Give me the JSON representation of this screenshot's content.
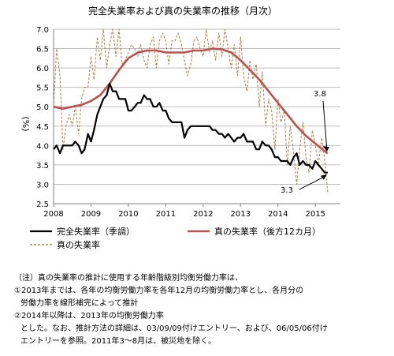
{
  "chart_data": {
    "type": "line",
    "title": "完全失業率および真の失業率の推移（月次）",
    "ylabel": "(%)",
    "xlabel": "",
    "ylim": [
      2.5,
      7.0
    ],
    "yticks": [
      "2.5",
      "3.0",
      "3.5",
      "4.0",
      "4.5",
      "5.0",
      "5.5",
      "6.0",
      "6.5",
      "7.0"
    ],
    "xlim": [
      2008.0,
      2015.67
    ],
    "xticks": [
      "2008",
      "2009",
      "2010",
      "2011",
      "2012",
      "2013",
      "2014",
      "2015"
    ],
    "grid": "horizontal",
    "legend_position": "bottom",
    "series": [
      {
        "name": "完全失業率（季調）",
        "color": "#000000",
        "style": "solid",
        "x": [
          2008.0,
          2008.08,
          2008.17,
          2008.25,
          2008.33,
          2008.42,
          2008.5,
          2008.58,
          2008.67,
          2008.75,
          2008.83,
          2008.92,
          2009.0,
          2009.08,
          2009.17,
          2009.25,
          2009.33,
          2009.42,
          2009.5,
          2009.58,
          2009.67,
          2009.75,
          2009.83,
          2009.92,
          2010.0,
          2010.08,
          2010.17,
          2010.25,
          2010.33,
          2010.42,
          2010.5,
          2010.58,
          2010.67,
          2010.75,
          2010.83,
          2010.92,
          2011.0,
          2011.08,
          2011.17,
          2011.25,
          2011.33,
          2011.42,
          2011.5,
          2011.58,
          2011.67,
          2011.75,
          2011.83,
          2011.92,
          2012.0,
          2012.08,
          2012.17,
          2012.25,
          2012.33,
          2012.42,
          2012.5,
          2012.58,
          2012.67,
          2012.75,
          2012.83,
          2012.92,
          2013.0,
          2013.08,
          2013.17,
          2013.25,
          2013.33,
          2013.42,
          2013.5,
          2013.58,
          2013.67,
          2013.75,
          2013.83,
          2013.92,
          2014.0,
          2014.08,
          2014.17,
          2014.25,
          2014.33,
          2014.42,
          2014.5,
          2014.58,
          2014.67,
          2014.75,
          2014.83,
          2014.92,
          2015.0,
          2015.08,
          2015.17,
          2015.25,
          2015.33
        ],
        "values": [
          3.9,
          4.0,
          3.8,
          4.0,
          4.0,
          4.0,
          4.0,
          4.1,
          4.0,
          3.8,
          3.9,
          4.3,
          4.1,
          4.4,
          4.8,
          5.0,
          5.2,
          5.3,
          5.6,
          5.4,
          5.4,
          5.2,
          5.2,
          5.2,
          4.9,
          4.9,
          5.0,
          5.1,
          5.1,
          5.3,
          5.2,
          5.2,
          5.0,
          5.0,
          5.1,
          4.9,
          4.9,
          4.7,
          4.6,
          4.6,
          4.6,
          4.6,
          4.2,
          4.4,
          4.5,
          4.5,
          4.5,
          4.5,
          4.5,
          4.5,
          4.5,
          4.4,
          4.4,
          4.3,
          4.3,
          4.2,
          4.3,
          4.2,
          4.1,
          4.2,
          4.2,
          4.3,
          4.1,
          4.1,
          4.1,
          3.9,
          3.9,
          4.1,
          4.0,
          4.0,
          3.9,
          3.7,
          3.7,
          3.6,
          3.6,
          3.6,
          3.5,
          3.7,
          3.8,
          3.5,
          3.6,
          3.5,
          3.5,
          3.4,
          3.6,
          3.5,
          3.4,
          3.3,
          3.3
        ]
      },
      {
        "name": "真の失業率（後方12カ月）",
        "color": "#c0504d",
        "style": "solid",
        "x": [
          2008.0,
          2008.25,
          2008.5,
          2008.75,
          2009.0,
          2009.25,
          2009.5,
          2009.75,
          2010.0,
          2010.25,
          2010.5,
          2010.75,
          2011.0,
          2011.25,
          2011.5,
          2011.75,
          2012.0,
          2012.25,
          2012.5,
          2012.75,
          2013.0,
          2013.25,
          2013.5,
          2013.75,
          2014.0,
          2014.25,
          2014.5,
          2014.75,
          2015.0,
          2015.25,
          2015.33
        ],
        "values": [
          5.0,
          4.95,
          5.0,
          5.05,
          5.15,
          5.3,
          5.6,
          5.95,
          6.25,
          6.4,
          6.45,
          6.45,
          6.4,
          6.4,
          6.4,
          6.45,
          6.45,
          6.5,
          6.48,
          6.4,
          6.2,
          5.95,
          5.7,
          5.4,
          5.1,
          4.8,
          4.5,
          4.25,
          4.05,
          3.85,
          3.8
        ]
      },
      {
        "name": "真の失業率",
        "color": "#b08850",
        "style": "dashed",
        "x": [
          2008.0,
          2008.08,
          2008.17,
          2008.25,
          2008.33,
          2008.42,
          2008.5,
          2008.58,
          2008.67,
          2008.75,
          2008.83,
          2008.92,
          2009.0,
          2009.08,
          2009.17,
          2009.25,
          2009.33,
          2009.42,
          2009.5,
          2009.58,
          2009.67,
          2009.75,
          2009.83,
          2009.92,
          2010.0,
          2010.08,
          2010.17,
          2010.25,
          2010.33,
          2010.42,
          2010.5,
          2010.58,
          2010.67,
          2010.75,
          2010.83,
          2010.92,
          2011.0,
          2011.08,
          2011.17,
          2011.25,
          2011.33,
          2011.42,
          2011.5,
          2011.58,
          2011.67,
          2011.75,
          2011.83,
          2011.92,
          2012.0,
          2012.08,
          2012.17,
          2012.25,
          2012.33,
          2012.42,
          2012.5,
          2012.58,
          2012.67,
          2012.75,
          2012.83,
          2012.92,
          2013.0,
          2013.08,
          2013.17,
          2013.25,
          2013.33,
          2013.42,
          2013.5,
          2013.58,
          2013.67,
          2013.75,
          2013.83,
          2013.92,
          2014.0,
          2014.08,
          2014.17,
          2014.25,
          2014.33,
          2014.42,
          2014.5,
          2014.58,
          2014.67,
          2014.75,
          2014.83,
          2014.92,
          2015.0,
          2015.08,
          2015.17,
          2015.25,
          2015.33
        ],
        "values": [
          5.0,
          6.5,
          5.8,
          3.9,
          4.5,
          4.8,
          4.5,
          5.0,
          4.3,
          5.2,
          5.5,
          5.5,
          6.3,
          5.7,
          6.8,
          6.2,
          7.0,
          6.0,
          6.6,
          7.0,
          6.3,
          7.0,
          6.1,
          6.2,
          6.4,
          6.6,
          6.5,
          6.3,
          6.6,
          6.2,
          6.0,
          6.6,
          6.8,
          6.0,
          6.7,
          6.9,
          6.7,
          6.1,
          6.7,
          6.7,
          6.9,
          6.6,
          6.2,
          5.8,
          6.1,
          6.7,
          6.8,
          6.5,
          6.3,
          7.0,
          6.4,
          6.7,
          6.2,
          6.9,
          6.3,
          7.0,
          6.5,
          6.0,
          6.6,
          5.8,
          6.8,
          5.8,
          5.4,
          6.2,
          5.7,
          6.1,
          5.0,
          5.9,
          4.5,
          5.2,
          4.9,
          3.9,
          5.2,
          4.6,
          4.9,
          3.5,
          4.5,
          3.8,
          3.0,
          3.9,
          4.6,
          3.7,
          3.3,
          4.4,
          4.0,
          3.5,
          4.2,
          3.6,
          2.8
        ]
      }
    ],
    "annotations": [
      {
        "text": "3.8",
        "x": 2015.33,
        "y": 3.8
      },
      {
        "text": "3.3",
        "x": 2015.33,
        "y": 3.3
      }
    ]
  },
  "notes": [
    "（注）真の失業率の推計に使用する年齢階級別均衡労働力率は、",
    "①2013年までは、各年の均衡労働力率を各年12月の均衡労働力率とし、各月分の",
    "労働力率を線形補完によって推計",
    "②2014年以降は、2013年の均衡労働力率",
    "とした。なお、推計方法の詳細は、03/09/09付けエントリー、および、06/05/06付け",
    "エントリーを参照。2011年3～8月は、被災地を除く。"
  ]
}
